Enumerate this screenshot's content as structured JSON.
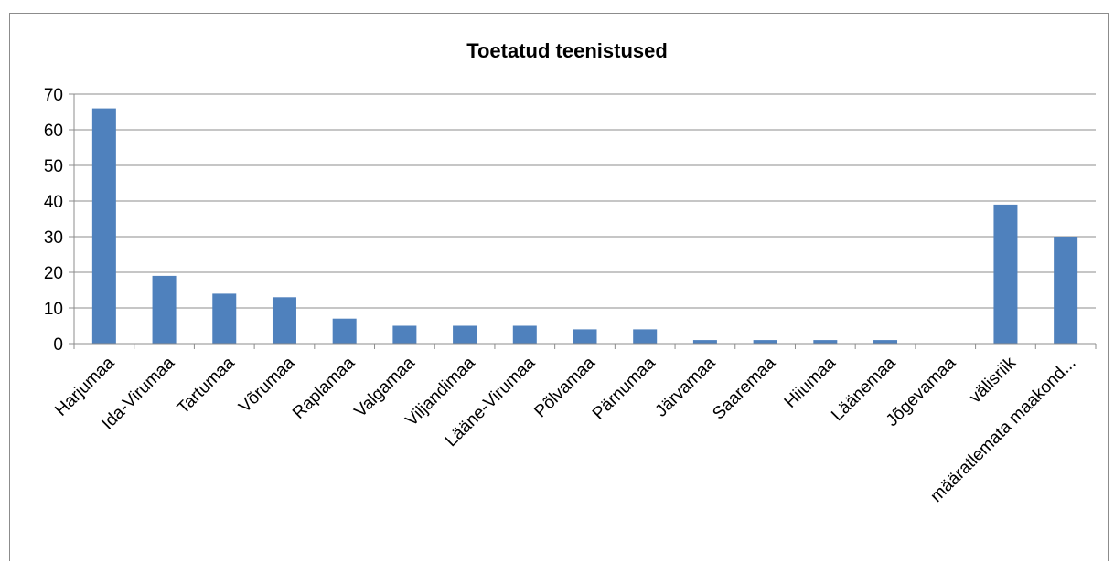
{
  "chart_data": {
    "type": "bar",
    "title": "Toetatud teenistused",
    "xlabel": "",
    "ylabel": "",
    "ylim": [
      0,
      70
    ],
    "yticks": [
      0,
      10,
      20,
      30,
      40,
      50,
      60,
      70
    ],
    "grid": true,
    "legend": "none",
    "categories": [
      "Harjumaa",
      "Ida-Virumaa",
      "Tartumaa",
      "Võrumaa",
      "Raplamaa",
      "Valgamaa",
      "Viljandimaa",
      "Lääne-Virumaa",
      "Põlvamaa",
      "Pärnumaa",
      "Järvamaa",
      "Saaremaa",
      "Hiiumaa",
      "Läänemaa",
      "Jõgevamaa",
      "välisriik",
      "määratlemata maakond..."
    ],
    "values": [
      66,
      19,
      14,
      13,
      7,
      5,
      5,
      5,
      4,
      4,
      1,
      1,
      1,
      1,
      0,
      39,
      30
    ],
    "colors": {
      "bar": "#4f81bd",
      "grid": "#8c8c8c",
      "axis": "#8c8c8c"
    }
  }
}
